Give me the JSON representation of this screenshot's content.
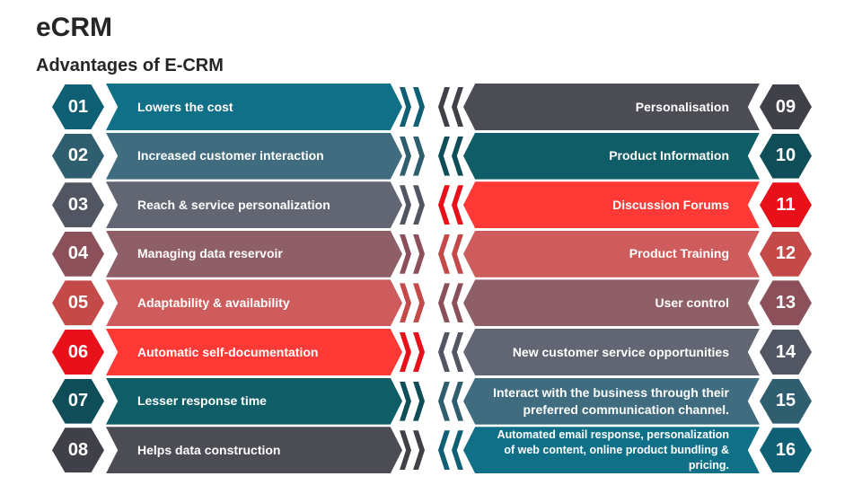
{
  "title": "eCRM",
  "subtitle": "Advantages of E-CRM",
  "left_items": [
    {
      "num": "01",
      "label": "Lowers the cost",
      "color": "#0F7088",
      "num_color": "#0F6075"
    },
    {
      "num": "02",
      "label": "Increased customer interaction",
      "color": "#3F6C7E",
      "num_color": "#2F5E6E"
    },
    {
      "num": "03",
      "label": "Reach & service personalization",
      "color": "#626672",
      "num_color": "#525662"
    },
    {
      "num": "04",
      "label": "Managing data reservoir",
      "color": "#8F5F68",
      "num_color": "#8B5059"
    },
    {
      "num": "05",
      "label": "Adaptability & availability",
      "color": "#CF5C5C",
      "num_color": "#C44A4A"
    },
    {
      "num": "06",
      "label": "Automatic self-documentation",
      "color": "#FF3A36",
      "num_color": "#E8111A"
    },
    {
      "num": "07",
      "label": "Lesser response time",
      "color": "#0F5D67",
      "num_color": "#0F4E58"
    },
    {
      "num": "08",
      "label": "Helps data construction",
      "color": "#4B4C54",
      "num_color": "#3F4048"
    }
  ],
  "right_items": [
    {
      "num": "09",
      "label": "Personalisation",
      "color": "#4B4C54",
      "num_color": "#3F4048",
      "small": false
    },
    {
      "num": "10",
      "label": "Product Information",
      "color": "#0F5D67",
      "num_color": "#0F4E58",
      "small": false
    },
    {
      "num": "11",
      "label": "Discussion Forums",
      "color": "#FF3A36",
      "num_color": "#E8111A",
      "small": false
    },
    {
      "num": "12",
      "label": "Product Training",
      "color": "#CF5C5C",
      "num_color": "#C44A4A",
      "small": false
    },
    {
      "num": "13",
      "label": "User control",
      "color": "#8F5F68",
      "num_color": "#8B5059",
      "small": false
    },
    {
      "num": "14",
      "label": "New customer service opportunities",
      "color": "#626672",
      "num_color": "#525662",
      "small": false
    },
    {
      "num": "15",
      "label": "Interact with the business through their preferred communication channel.",
      "color": "#3F6C7E",
      "num_color": "#2F5E6E",
      "small": false
    },
    {
      "num": "16",
      "label": "Automated email response, personalization of web content, online product bundling & pricing.",
      "color": "#0F7088",
      "num_color": "#0F6075",
      "small": true
    }
  ]
}
